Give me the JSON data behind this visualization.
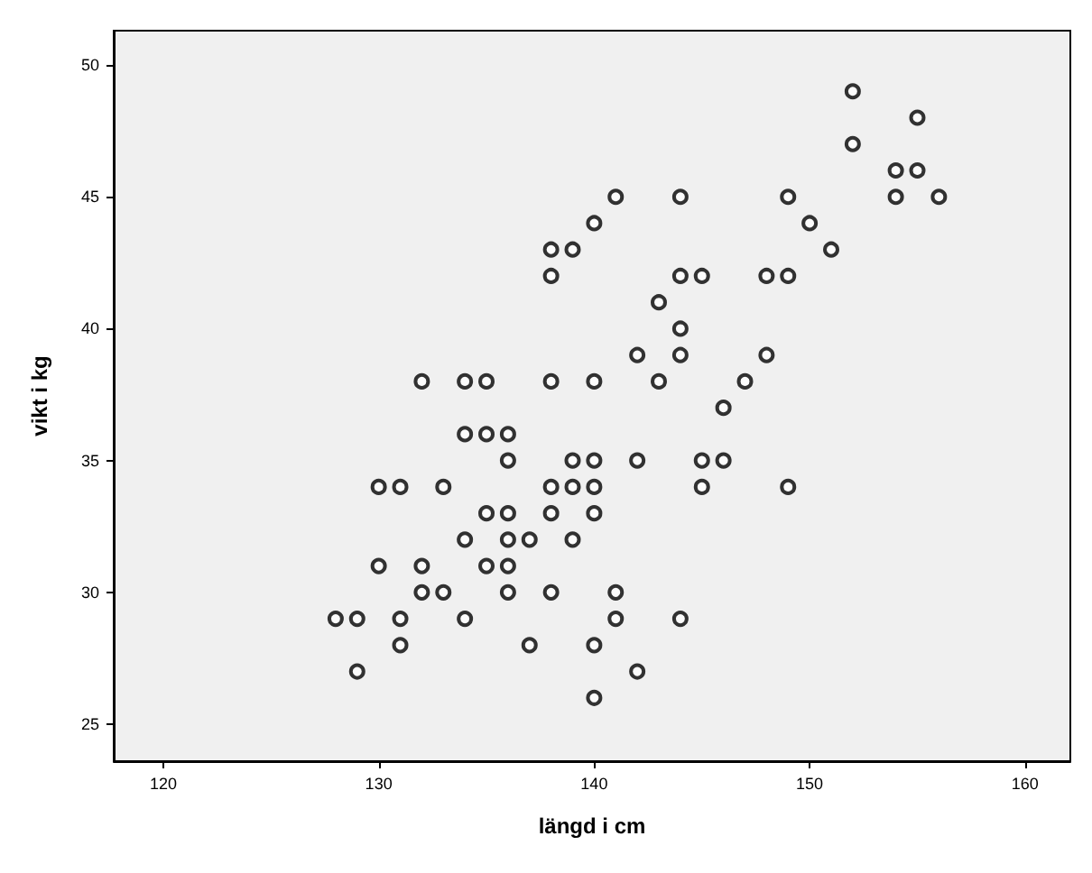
{
  "chart_data": {
    "type": "scatter",
    "xlabel": "längd i cm",
    "ylabel": "vikt i kg",
    "x": [
      152,
      155,
      152,
      154,
      155,
      154,
      156,
      149,
      151,
      150,
      149,
      148,
      141,
      144,
      140,
      138,
      139,
      138,
      144,
      145,
      143,
      144,
      144,
      142,
      148,
      147,
      143,
      140,
      138,
      132,
      134,
      135,
      146,
      134,
      135,
      136,
      136,
      139,
      140,
      142,
      145,
      146,
      130,
      131,
      133,
      138,
      139,
      140,
      145,
      149,
      135,
      136,
      138,
      140,
      134,
      136,
      137,
      139,
      130,
      132,
      135,
      136,
      132,
      133,
      136,
      138,
      141,
      128,
      129,
      131,
      134,
      141,
      144,
      131,
      137,
      140,
      129,
      142,
      140
    ],
    "values": [
      49,
      48,
      47,
      46,
      46,
      45,
      45,
      45,
      43,
      44,
      42,
      42,
      45,
      45,
      44,
      43,
      43,
      42,
      42,
      42,
      41,
      40,
      39,
      39,
      39,
      38,
      38,
      38,
      38,
      38,
      38,
      38,
      37,
      36,
      36,
      36,
      35,
      35,
      35,
      35,
      35,
      35,
      34,
      34,
      34,
      34,
      34,
      34,
      34,
      34,
      33,
      33,
      33,
      33,
      32,
      32,
      32,
      32,
      31,
      31,
      31,
      31,
      30,
      30,
      30,
      30,
      30,
      29,
      29,
      29,
      29,
      29,
      29,
      28,
      28,
      28,
      27,
      27,
      26
    ],
    "color": "#000000",
    "marker": "circle",
    "xlim": [
      117.7,
      162.1
    ],
    "ylim": [
      23.6,
      51.3
    ],
    "xticks": [
      120,
      130,
      140,
      150,
      160
    ],
    "yticks": [
      25,
      30,
      35,
      40,
      45,
      50
    ]
  }
}
